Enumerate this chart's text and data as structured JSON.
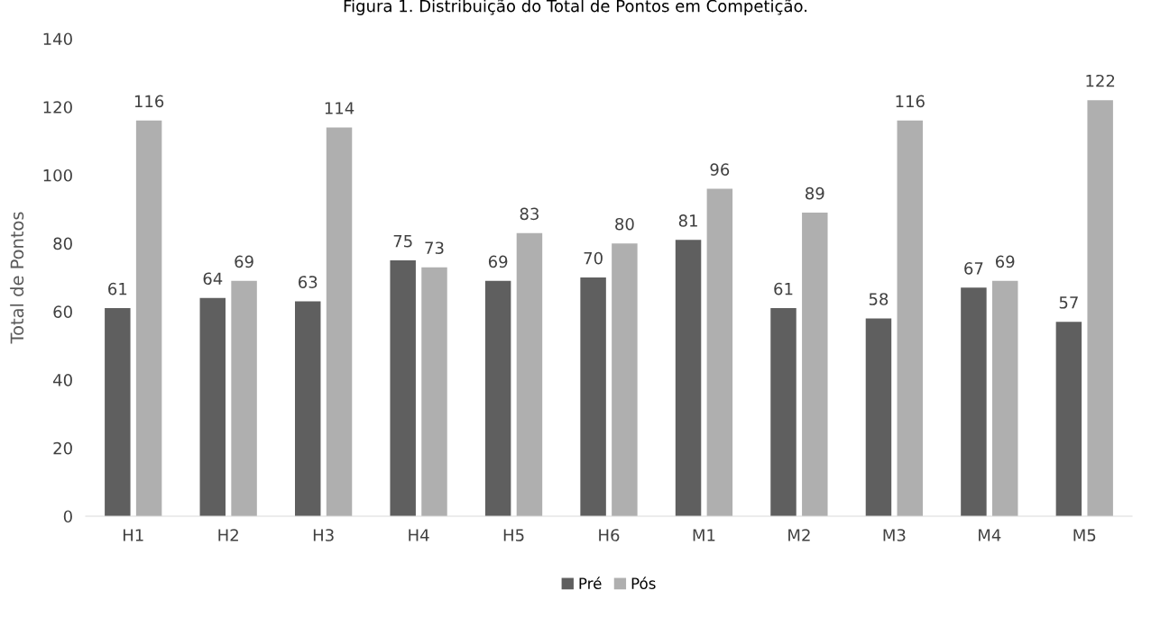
{
  "chart_data": {
    "type": "bar",
    "title": "Figura 1. Distribuição do Total de Pontos em Competição.",
    "ylabel": "Total de Pontos",
    "categories": [
      "H1",
      "H2",
      "H3",
      "H4",
      "H5",
      "H6",
      "M1",
      "M2",
      "M3",
      "M4",
      "M5"
    ],
    "series": [
      {
        "name": "Pré",
        "color": "#5f5f5f",
        "values": [
          61,
          64,
          63,
          75,
          69,
          70,
          81,
          61,
          58,
          67,
          57
        ]
      },
      {
        "name": "Pós",
        "color": "#afafaf",
        "values": [
          116,
          69,
          114,
          73,
          83,
          80,
          96,
          89,
          116,
          69,
          122
        ]
      }
    ],
    "ylim": [
      0,
      140
    ],
    "yticks": [
      0,
      20,
      40,
      60,
      80,
      100,
      120,
      140
    ],
    "data_labels": true,
    "grid": false,
    "legend": "bottom"
  }
}
